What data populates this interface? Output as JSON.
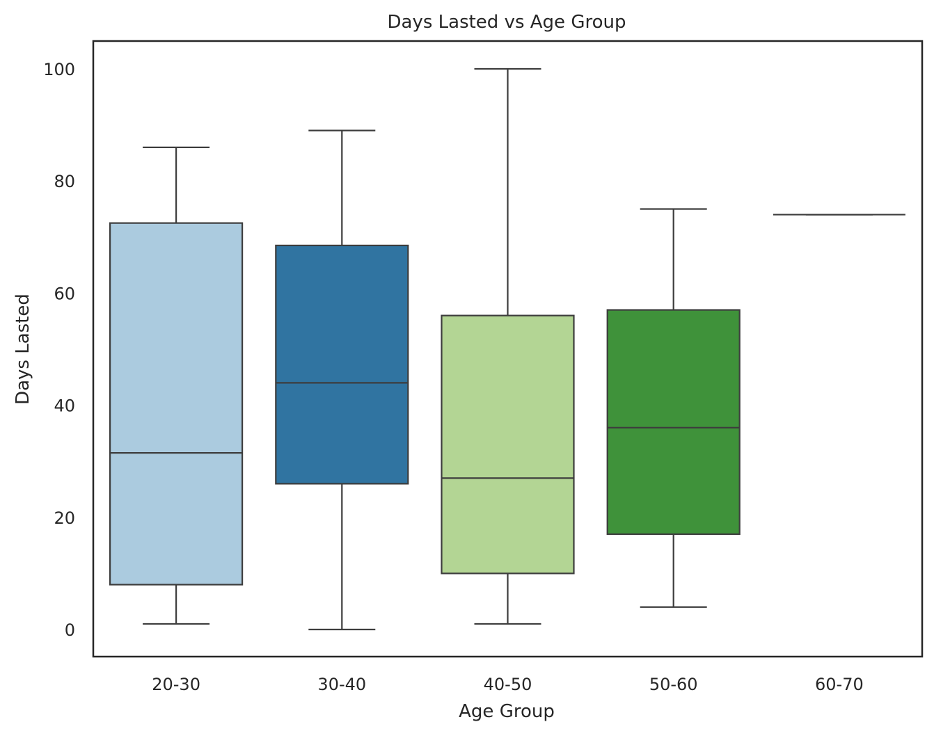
{
  "chart_data": {
    "type": "box",
    "title": "Days Lasted vs Age Group",
    "xlabel": "Age Group",
    "ylabel": "Days Lasted",
    "ylim": [
      -5,
      105
    ],
    "yticks": [
      0,
      20,
      40,
      60,
      80,
      100
    ],
    "grid": false,
    "categories": [
      "20-30",
      "30-40",
      "40-50",
      "50-60",
      "60-70"
    ],
    "boxes": [
      {
        "category": "20-30",
        "whisker_low": 1,
        "q1": 8,
        "median": 31.5,
        "q3": 72.5,
        "whisker_high": 86,
        "color": "#abcbdf"
      },
      {
        "category": "30-40",
        "whisker_low": 0,
        "q1": 26,
        "median": 44,
        "q3": 68.5,
        "whisker_high": 89,
        "color": "#3074a1"
      },
      {
        "category": "40-50",
        "whisker_low": 1,
        "q1": 10,
        "median": 27,
        "q3": 56,
        "whisker_high": 100,
        "color": "#b3d594"
      },
      {
        "category": "50-60",
        "whisker_low": 4,
        "q1": 17,
        "median": 36,
        "q3": 57,
        "whisker_high": 75,
        "color": "#3f923a"
      },
      {
        "category": "60-70",
        "whisker_low": 74,
        "q1": 74,
        "median": 74,
        "q3": 74,
        "whisker_high": 74,
        "color": "#fb9a99"
      }
    ],
    "line_color": "#3d3d3d"
  }
}
